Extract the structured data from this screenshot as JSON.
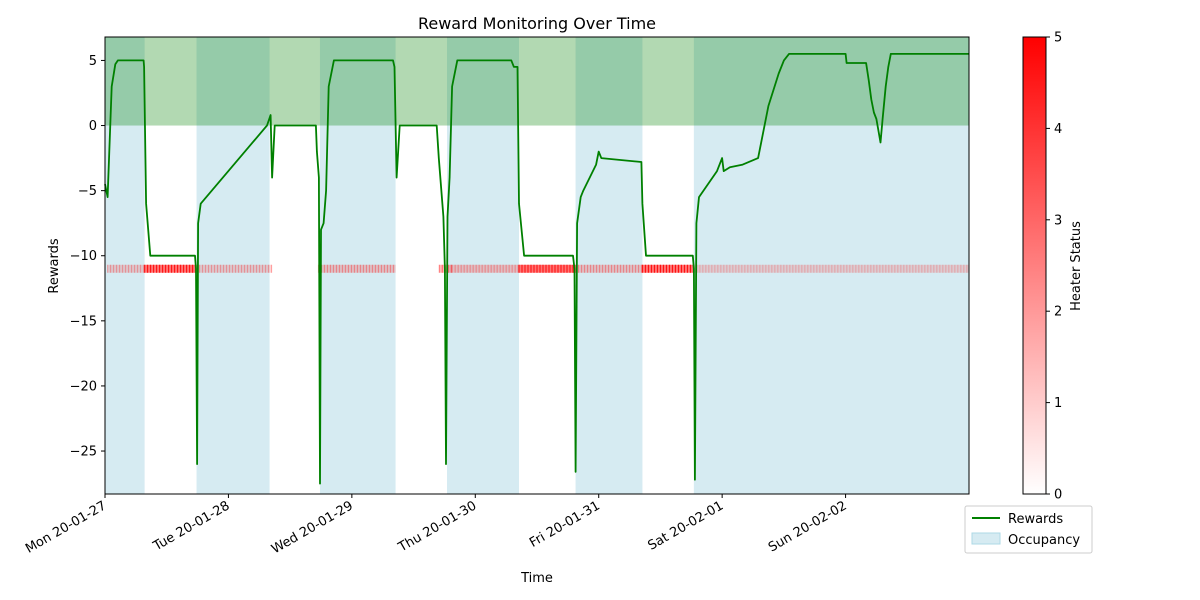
{
  "chart_data": {
    "type": "line",
    "title": "Reward Monitoring Over Time",
    "xlabel": "Time",
    "ylabel": "Rewards",
    "x_range_hours": [
      0,
      168
    ],
    "ylim": [
      -28.3,
      6.8
    ],
    "yticks": [
      5,
      0,
      -5,
      -10,
      -15,
      -20,
      -25
    ],
    "ytick_labels": [
      "5",
      "0",
      "−5",
      "−10",
      "−15",
      "−20",
      "−25"
    ],
    "xticks": [
      {
        "hour": 0,
        "label": "Mon 20-01-27"
      },
      {
        "hour": 24,
        "label": "Tue 20-01-28"
      },
      {
        "hour": 48,
        "label": "Wed 20-01-29"
      },
      {
        "hour": 72,
        "label": "Thu 20-01-30"
      },
      {
        "hour": 96,
        "label": "Fri 20-01-31"
      },
      {
        "hour": 120,
        "label": "Sat 20-02-01"
      },
      {
        "hour": 144,
        "label": "Sun 20-02-02"
      }
    ],
    "legend": {
      "position": "lower-right-outside",
      "entries": [
        {
          "label": "Rewards",
          "kind": "line",
          "color": "#008000"
        },
        {
          "label": "Occupancy",
          "kind": "patch",
          "color": "#add8e6"
        }
      ]
    },
    "colorbar": {
      "label": "Heater Status",
      "min": 0,
      "max": 5,
      "ticks": [
        "0",
        "1",
        "2",
        "3",
        "4",
        "5"
      ],
      "colors": [
        "#ffffff",
        "#ff0000"
      ]
    },
    "positive_band": {
      "from": 0,
      "to": 6.8,
      "color": "#008000",
      "alpha": 0.3
    },
    "occupancy_spans_hours": [
      [
        0,
        7.7
      ],
      [
        17.8,
        32
      ],
      [
        41.8,
        56.5
      ],
      [
        66.5,
        80.5
      ],
      [
        91.5,
        104.5
      ],
      [
        114.5,
        168
      ]
    ],
    "heater_rows": {
      "y": -11,
      "strips": [
        {
          "from": 0.5,
          "to": 7.7,
          "level": 1.5
        },
        {
          "from": 7.7,
          "to": 17.8,
          "level": 5
        },
        {
          "from": 17.8,
          "to": 32.5,
          "level": 1.5
        },
        {
          "from": 41.5,
          "to": 56.5,
          "level": 1.8
        },
        {
          "from": 65,
          "to": 67.5,
          "level": 2.5
        },
        {
          "from": 67.5,
          "to": 80.5,
          "level": 1.8
        },
        {
          "from": 80.5,
          "to": 91.5,
          "level": 5
        },
        {
          "from": 91.5,
          "to": 104.5,
          "level": 1.8
        },
        {
          "from": 104.5,
          "to": 114.5,
          "level": 5
        },
        {
          "from": 114.5,
          "to": 168,
          "level": 1.2
        }
      ]
    },
    "series": [
      {
        "name": "Rewards",
        "color": "#008000",
        "points": [
          [
            0,
            -4.5
          ],
          [
            0.5,
            -5.5
          ],
          [
            1.3,
            3
          ],
          [
            2,
            4.7
          ],
          [
            2.5,
            5
          ],
          [
            7.5,
            5
          ],
          [
            7.6,
            4.5
          ],
          [
            8,
            -6
          ],
          [
            8.8,
            -10
          ],
          [
            17.5,
            -10
          ],
          [
            17.7,
            -11
          ],
          [
            17.9,
            -26
          ],
          [
            18.1,
            -7.5
          ],
          [
            18.6,
            -6
          ],
          [
            31.5,
            0
          ],
          [
            32.2,
            0.8
          ],
          [
            32.5,
            -4
          ],
          [
            33,
            0
          ],
          [
            41,
            0
          ],
          [
            41.2,
            -2
          ],
          [
            41.6,
            -4
          ],
          [
            41.8,
            -27.5
          ],
          [
            42,
            -8
          ],
          [
            42.5,
            -7.5
          ],
          [
            43,
            -5
          ],
          [
            43.5,
            3
          ],
          [
            44.5,
            5
          ],
          [
            56,
            5
          ],
          [
            56.3,
            4.5
          ],
          [
            56.7,
            -4
          ],
          [
            57.3,
            0
          ],
          [
            64.5,
            0
          ],
          [
            64.9,
            -2.5
          ],
          [
            65.8,
            -7
          ],
          [
            66.1,
            -11
          ],
          [
            66.3,
            -26
          ],
          [
            66.6,
            -7
          ],
          [
            67,
            -4
          ],
          [
            67.5,
            3
          ],
          [
            68.5,
            5
          ],
          [
            79,
            5
          ],
          [
            79.5,
            4.5
          ],
          [
            80.2,
            4.5
          ],
          [
            80.5,
            -6
          ],
          [
            81.5,
            -10
          ],
          [
            91,
            -10
          ],
          [
            91.3,
            -11
          ],
          [
            91.5,
            -26.6
          ],
          [
            91.8,
            -7.5
          ],
          [
            92.5,
            -5.5
          ],
          [
            93,
            -5
          ],
          [
            95.5,
            -3
          ],
          [
            96,
            -2
          ],
          [
            96.5,
            -2.5
          ],
          [
            104.3,
            -2.8
          ],
          [
            104.5,
            -6
          ],
          [
            105.2,
            -10
          ],
          [
            114.3,
            -10
          ],
          [
            114.5,
            -11
          ],
          [
            114.7,
            -27.2
          ],
          [
            115,
            -7.5
          ],
          [
            115.5,
            -5.5
          ],
          [
            119,
            -3.5
          ],
          [
            120,
            -2.5
          ],
          [
            120.3,
            -3.5
          ],
          [
            121.5,
            -3.2
          ],
          [
            124,
            -3
          ],
          [
            127,
            -2.5
          ],
          [
            129,
            1.5
          ],
          [
            131,
            4
          ],
          [
            132,
            5
          ],
          [
            133,
            5.5
          ],
          [
            144,
            5.5
          ],
          [
            144.2,
            4.8
          ],
          [
            148,
            4.8
          ],
          [
            148.5,
            3.5
          ],
          [
            149,
            2
          ],
          [
            149.5,
            1
          ],
          [
            150,
            0.5
          ],
          [
            150.8,
            -1.3
          ],
          [
            151.2,
            0.5
          ],
          [
            151.8,
            3
          ],
          [
            152.3,
            4.5
          ],
          [
            152.8,
            5.5
          ],
          [
            168,
            5.5
          ]
        ]
      }
    ]
  }
}
